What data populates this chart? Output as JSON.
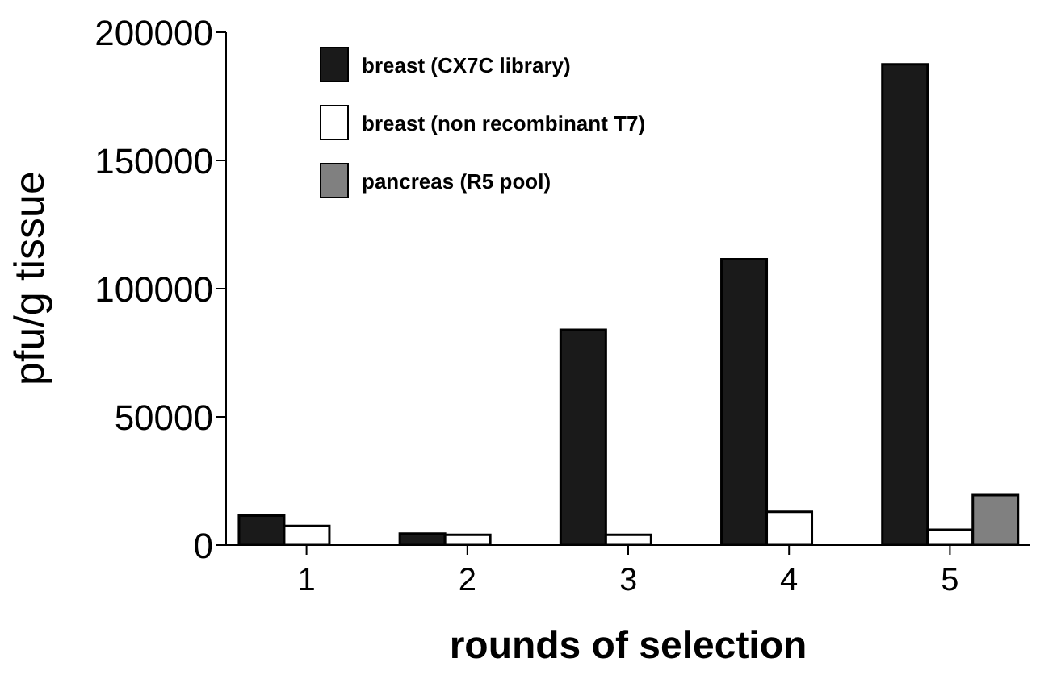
{
  "chart_data": {
    "type": "bar",
    "xlabel": "rounds of selection",
    "ylabel": "pfu/g tissue",
    "categories": [
      "1",
      "2",
      "3",
      "4",
      "5"
    ],
    "series": [
      {
        "name": "breast (CX7C library)",
        "color": "#1a1a1a",
        "values": [
          11500,
          4500,
          84000,
          111500,
          187500
        ]
      },
      {
        "name": "breast (non recombinant T7)",
        "color": "#ffffff",
        "values": [
          7500,
          4000,
          4000,
          13000,
          6000
        ]
      },
      {
        "name": "pancreas (R5 pool)",
        "color": "#808080",
        "values": [
          null,
          null,
          null,
          null,
          19500
        ]
      }
    ],
    "ylim": [
      0,
      200000
    ],
    "yticks": [
      0,
      50000,
      100000,
      150000,
      200000
    ],
    "grid": false,
    "legend": "top left"
  }
}
